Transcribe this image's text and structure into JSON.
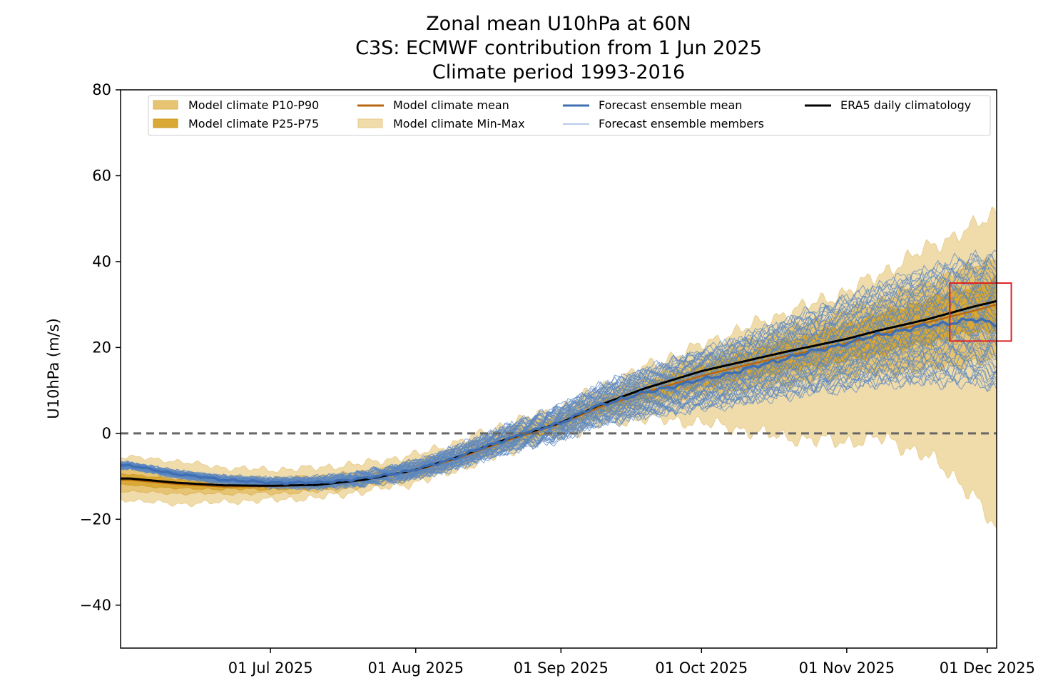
{
  "chart_data": {
    "type": "area",
    "title": [
      "Zonal mean U10hPa at 60N",
      "C3S: ECMWF contribution from 1 Jun 2025",
      "Climate period 1993-2016"
    ],
    "ylabel": "U10hPa (m/s)",
    "xlabel": "",
    "ylim": [
      -50,
      80
    ],
    "yticks": [
      80,
      60,
      40,
      20,
      0,
      -20,
      -40
    ],
    "ytick_labels": [
      "80",
      "60",
      "40",
      "20",
      "0",
      "−20",
      "−40"
    ],
    "xlim_days": [
      0,
      183
    ],
    "xticks": [
      {
        "day": 30,
        "label": "01 Jul 2025"
      },
      {
        "day": 61,
        "label": "01 Aug 2025"
      },
      {
        "day": 92,
        "label": "01 Sep 2025"
      },
      {
        "day": 122,
        "label": "01 Oct 2025"
      },
      {
        "day": 153,
        "label": "01 Nov 2025"
      },
      {
        "day": 183,
        "label": "01 Dec 2025"
      }
    ],
    "zero_line": 0,
    "legend": [
      {
        "label": "Model climate P10-P90",
        "kind": "patch",
        "color": "#e6c473"
      },
      {
        "label": "Model climate P25-P75",
        "kind": "patch",
        "color": "#d9a835"
      },
      {
        "label": "Model climate mean",
        "kind": "line",
        "color": "#b8690f"
      },
      {
        "label": "Model climate Min-Max",
        "kind": "patch",
        "color": "#f0dcaa"
      },
      {
        "label": "Forecast ensemble mean",
        "kind": "line",
        "color": "#3f6fb2"
      },
      {
        "label": "Forecast ensemble members",
        "kind": "thinline",
        "color": "#6f9ad0"
      },
      {
        "label": "ERA5 daily climatology",
        "kind": "line",
        "color": "#000000"
      }
    ],
    "days": [
      0,
      10,
      20,
      30,
      40,
      50,
      61,
      70,
      80,
      92,
      100,
      110,
      122,
      130,
      140,
      153,
      160,
      170,
      180,
      185
    ],
    "era5_climatology": [
      -10.5,
      -11.5,
      -12.1,
      -12.2,
      -12.0,
      -10.8,
      -8.5,
      -5.5,
      -1.5,
      2.5,
      6.5,
      10.5,
      14.5,
      16.5,
      19.0,
      22.0,
      24.0,
      26.5,
      29.5,
      30.8
    ],
    "model_climate_mean": [
      -10.8,
      -11.8,
      -12.4,
      -12.3,
      -12.0,
      -10.8,
      -8.6,
      -5.8,
      -1.8,
      2.3,
      6.0,
      9.6,
      13.4,
      15.5,
      18.0,
      21.0,
      23.0,
      25.8,
      28.5,
      30.0
    ],
    "forecast_ensemble_mean": [
      -7.5,
      -9.5,
      -10.8,
      -11.5,
      -11.5,
      -10.5,
      -8.5,
      -5.5,
      -1.5,
      2.5,
      6.5,
      9.5,
      12.5,
      14.5,
      17.5,
      21.0,
      23.0,
      25.0,
      26.5,
      25.5
    ],
    "min_max": {
      "min": [
        -15.5,
        -16.5,
        -16.0,
        -15.5,
        -15.0,
        -13.5,
        -11.5,
        -8.5,
        -4.5,
        -0.5,
        2.0,
        3.5,
        2.5,
        1.0,
        -1.0,
        -2.0,
        -1.0,
        -5.0,
        -14.0,
        -23.0
      ],
      "max": [
        -5.5,
        -6.5,
        -8.0,
        -8.5,
        -8.0,
        -7.0,
        -5.0,
        -2.0,
        2.0,
        6.0,
        10.5,
        15.5,
        20.5,
        24.0,
        28.0,
        33.0,
        37.0,
        43.0,
        48.0,
        51.5
      ]
    },
    "p10_p90": {
      "low": [
        -13.5,
        -14.0,
        -14.0,
        -14.0,
        -13.5,
        -12.5,
        -10.5,
        -7.5,
        -3.5,
        0.5,
        4.0,
        6.5,
        9.0,
        10.0,
        11.5,
        13.5,
        14.0,
        15.0,
        16.5,
        17.0
      ],
      "high": [
        -8.0,
        -9.0,
        -10.0,
        -10.5,
        -10.0,
        -9.0,
        -6.5,
        -3.5,
        0.5,
        4.5,
        8.5,
        12.5,
        17.5,
        20.5,
        24.0,
        28.5,
        31.0,
        35.0,
        39.0,
        41.0
      ]
    },
    "p25_p75": {
      "low": [
        -12.0,
        -12.8,
        -13.0,
        -13.0,
        -12.8,
        -11.6,
        -9.5,
        -6.6,
        -2.6,
        1.4,
        5.0,
        8.0,
        11.0,
        12.5,
        14.5,
        17.0,
        18.5,
        21.0,
        23.5,
        24.5
      ],
      "high": [
        -9.5,
        -10.8,
        -11.4,
        -11.6,
        -11.2,
        -10.0,
        -7.7,
        -4.9,
        -0.9,
        3.2,
        7.2,
        11.2,
        15.7,
        18.3,
        21.5,
        25.3,
        27.8,
        31.0,
        34.5,
        36.0
      ]
    },
    "ensemble_members_count": 51,
    "annotation_box": {
      "x0_day": 175,
      "x1_day": 186,
      "y0": 21.5,
      "y1": 35.0,
      "color": "#dd2222"
    }
  }
}
